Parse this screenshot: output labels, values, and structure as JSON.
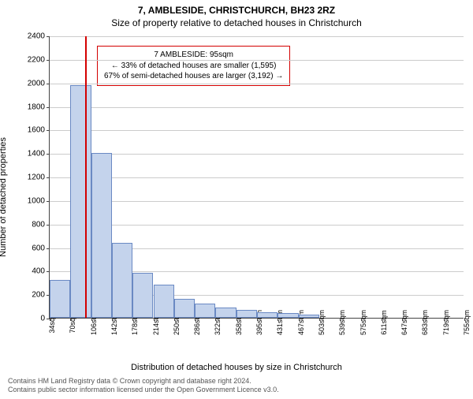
{
  "title_line1": "7, AMBLESIDE, CHRISTCHURCH, BH23 2RZ",
  "title_line2": "Size of property relative to detached houses in Christchurch",
  "y_axis_label": "Number of detached properties",
  "x_axis_label": "Distribution of detached houses by size in Christchurch",
  "footer_line1": "Contains HM Land Registry data © Crown copyright and database right 2024.",
  "footer_line2": "Contains public sector information licensed under the Open Government Licence v3.0.",
  "chart": {
    "type": "histogram",
    "background_color": "#ffffff",
    "grid_color": "#cccccc",
    "axis_color": "#444444",
    "bar_fill": "#c4d3ec",
    "bar_stroke": "#6a89c3",
    "ylim": [
      0,
      2400
    ],
    "ytick_step": 200,
    "x_start": 34,
    "x_step": 36,
    "x_unit_suffix": "sqm",
    "x_labels": [
      "34sqm",
      "70sqm",
      "106sqm",
      "142sqm",
      "178sqm",
      "214sqm",
      "250sqm",
      "286sqm",
      "322sqm",
      "358sqm",
      "395sqm",
      "431sqm",
      "467sqm",
      "503sqm",
      "539sqm",
      "575sqm",
      "611sqm",
      "647sqm",
      "683sqm",
      "719sqm",
      "755sqm"
    ],
    "bars": [
      320,
      1980,
      1400,
      640,
      380,
      280,
      160,
      120,
      90,
      70,
      50,
      40,
      30,
      0,
      0,
      0,
      0,
      0,
      0,
      0
    ],
    "marker": {
      "value_sqm": 95,
      "color": "#d40000"
    },
    "callout": {
      "border_color": "#d40000",
      "bg_color": "#ffffff",
      "line1": "7 AMBLESIDE: 95sqm",
      "line2": "← 33% of detached houses are smaller (1,595)",
      "line3": "67% of semi-detached houses are larger (3,192) →"
    }
  }
}
